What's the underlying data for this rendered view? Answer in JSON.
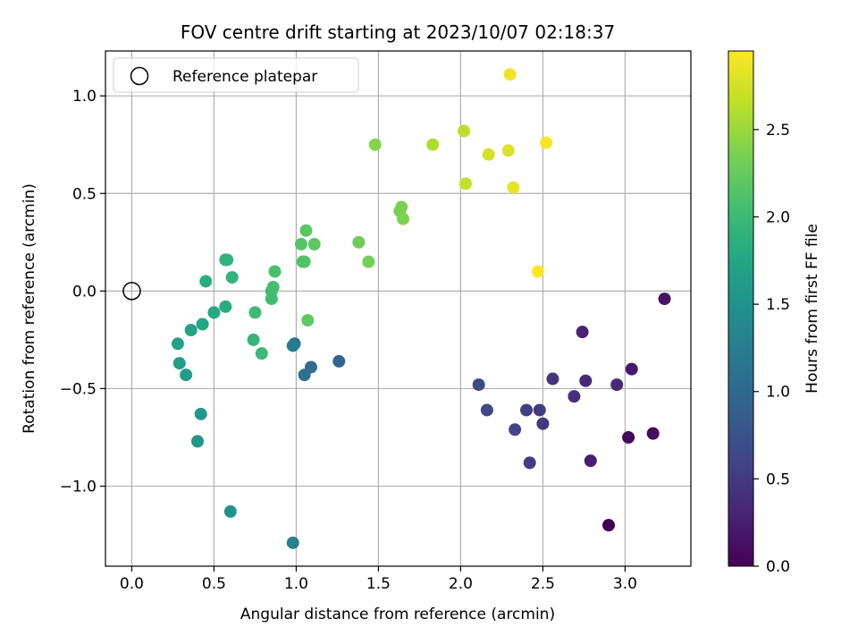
{
  "chart_data": {
    "type": "scatter",
    "title": "FOV centre drift starting at 2023/10/07 02:18:37",
    "xlabel": "Angular distance from reference (arcmin)",
    "ylabel": "Rotation from reference (arcmin)",
    "xlim": [
      -0.16,
      3.4
    ],
    "ylim": [
      -1.41,
      1.23
    ],
    "xticks": [
      0.0,
      0.5,
      1.0,
      1.5,
      2.0,
      2.5,
      3.0
    ],
    "xtick_labels": [
      "0.0",
      "0.5",
      "1.0",
      "1.5",
      "2.0",
      "2.5",
      "3.0"
    ],
    "yticks": [
      -1.0,
      -0.5,
      0.0,
      0.5,
      1.0
    ],
    "ytick_labels": [
      "−1.0",
      "−0.5",
      "0.0",
      "0.5",
      "1.0"
    ],
    "grid": true,
    "legend": {
      "position": "top-left",
      "entries": [
        "Reference platepar"
      ]
    },
    "reference_point": {
      "x": 0.0,
      "y": 0.0,
      "name": "Reference platepar"
    },
    "colorbar": {
      "label": "Hours from first FF file",
      "colormap": "viridis",
      "range": [
        0.0,
        2.95
      ],
      "ticks": [
        0.0,
        0.5,
        1.0,
        1.5,
        2.0,
        2.5
      ],
      "tick_labels": [
        "0.0",
        "0.5",
        "1.0",
        "1.5",
        "2.0",
        "2.5"
      ]
    },
    "points": [
      {
        "x": 2.9,
        "y": -1.2,
        "c": 0.0
      },
      {
        "x": 3.02,
        "y": -0.75,
        "c": 0.05
      },
      {
        "x": 3.17,
        "y": -0.73,
        "c": 0.08
      },
      {
        "x": 3.24,
        "y": -0.04,
        "c": 0.15
      },
      {
        "x": 3.04,
        "y": -0.4,
        "c": 0.2
      },
      {
        "x": 2.79,
        "y": -0.87,
        "c": 0.25
      },
      {
        "x": 2.74,
        "y": -0.21,
        "c": 0.28
      },
      {
        "x": 2.76,
        "y": -0.46,
        "c": 0.32
      },
      {
        "x": 2.95,
        "y": -0.48,
        "c": 0.35
      },
      {
        "x": 2.69,
        "y": -0.54,
        "c": 0.4
      },
      {
        "x": 2.56,
        "y": -0.45,
        "c": 0.45
      },
      {
        "x": 2.5,
        "y": -0.68,
        "c": 0.48
      },
      {
        "x": 2.48,
        "y": -0.61,
        "c": 0.5
      },
      {
        "x": 2.42,
        "y": -0.88,
        "c": 0.53
      },
      {
        "x": 2.4,
        "y": -0.61,
        "c": 0.56
      },
      {
        "x": 2.33,
        "y": -0.71,
        "c": 0.6
      },
      {
        "x": 2.16,
        "y": -0.61,
        "c": 0.63
      },
      {
        "x": 2.11,
        "y": -0.48,
        "c": 0.66
      },
      {
        "x": 1.26,
        "y": -0.36,
        "c": 0.95
      },
      {
        "x": 1.09,
        "y": -0.39,
        "c": 1.05
      },
      {
        "x": 1.05,
        "y": -0.43,
        "c": 1.1
      },
      {
        "x": 0.99,
        "y": -0.27,
        "c": 1.15
      },
      {
        "x": 0.98,
        "y": -0.28,
        "c": 1.2
      },
      {
        "x": 0.98,
        "y": -1.29,
        "c": 1.3
      },
      {
        "x": 0.6,
        "y": -1.13,
        "c": 1.5
      },
      {
        "x": 0.4,
        "y": -0.77,
        "c": 1.55
      },
      {
        "x": 0.42,
        "y": -0.63,
        "c": 1.58
      },
      {
        "x": 0.33,
        "y": -0.43,
        "c": 1.62
      },
      {
        "x": 0.29,
        "y": -0.37,
        "c": 1.65
      },
      {
        "x": 0.28,
        "y": -0.27,
        "c": 1.68
      },
      {
        "x": 0.36,
        "y": -0.2,
        "c": 1.72
      },
      {
        "x": 0.43,
        "y": -0.17,
        "c": 1.75
      },
      {
        "x": 0.5,
        "y": -0.11,
        "c": 1.78
      },
      {
        "x": 0.57,
        "y": -0.08,
        "c": 1.82
      },
      {
        "x": 0.45,
        "y": 0.05,
        "c": 1.85
      },
      {
        "x": 0.57,
        "y": 0.16,
        "c": 1.88
      },
      {
        "x": 0.58,
        "y": 0.16,
        "c": 1.9
      },
      {
        "x": 0.61,
        "y": 0.07,
        "c": 1.92
      },
      {
        "x": 0.74,
        "y": -0.25,
        "c": 1.95
      },
      {
        "x": 0.79,
        "y": -0.32,
        "c": 1.97
      },
      {
        "x": 0.75,
        "y": -0.11,
        "c": 2.0
      },
      {
        "x": 0.85,
        "y": 0.0,
        "c": 2.02
      },
      {
        "x": 0.85,
        "y": -0.04,
        "c": 2.04
      },
      {
        "x": 0.86,
        "y": 0.02,
        "c": 2.06
      },
      {
        "x": 0.87,
        "y": 0.1,
        "c": 2.08
      },
      {
        "x": 1.04,
        "y": 0.15,
        "c": 2.12
      },
      {
        "x": 1.05,
        "y": 0.15,
        "c": 2.14
      },
      {
        "x": 1.03,
        "y": 0.24,
        "c": 2.16
      },
      {
        "x": 1.06,
        "y": 0.31,
        "c": 2.18
      },
      {
        "x": 1.11,
        "y": 0.24,
        "c": 2.2
      },
      {
        "x": 1.07,
        "y": -0.15,
        "c": 2.22
      },
      {
        "x": 1.38,
        "y": 0.25,
        "c": 2.3
      },
      {
        "x": 1.44,
        "y": 0.15,
        "c": 2.32
      },
      {
        "x": 1.63,
        "y": 0.41,
        "c": 2.34
      },
      {
        "x": 1.64,
        "y": 0.43,
        "c": 2.36
      },
      {
        "x": 1.65,
        "y": 0.37,
        "c": 2.38
      },
      {
        "x": 1.48,
        "y": 0.75,
        "c": 2.4
      },
      {
        "x": 1.83,
        "y": 0.75,
        "c": 2.6
      },
      {
        "x": 2.02,
        "y": 0.82,
        "c": 2.65
      },
      {
        "x": 2.03,
        "y": 0.55,
        "c": 2.68
      },
      {
        "x": 2.17,
        "y": 0.7,
        "c": 2.75
      },
      {
        "x": 2.29,
        "y": 0.72,
        "c": 2.8
      },
      {
        "x": 2.32,
        "y": 0.53,
        "c": 2.85
      },
      {
        "x": 2.3,
        "y": 1.11,
        "c": 2.88
      },
      {
        "x": 2.52,
        "y": 0.76,
        "c": 2.92
      },
      {
        "x": 2.47,
        "y": 0.1,
        "c": 2.95
      }
    ]
  }
}
